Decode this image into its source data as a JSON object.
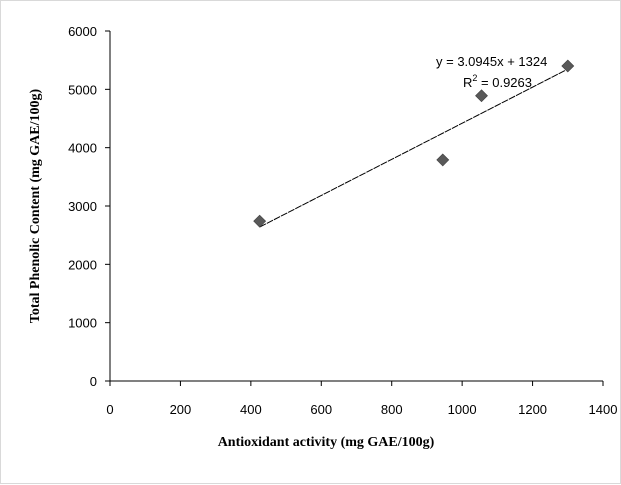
{
  "chart_data": {
    "type": "scatter",
    "title": "",
    "xlabel": "Antioxidant activity (mg GAE/100g)",
    "ylabel": "Total Phenolic Content (mg  GAE/100g)",
    "xlim": [
      0,
      1400
    ],
    "ylim": [
      0,
      6000
    ],
    "x_ticks": [
      "0",
      "200",
      "400",
      "600",
      "800",
      "1000",
      "1200",
      "1400"
    ],
    "y_ticks": [
      "0",
      "1000",
      "2000",
      "3000",
      "4000",
      "5000",
      "6000"
    ],
    "points": [
      {
        "x": 425,
        "y": 2740
      },
      {
        "x": 945,
        "y": 3790
      },
      {
        "x": 1055,
        "y": 4890
      },
      {
        "x": 1300,
        "y": 5400
      }
    ],
    "trendline": {
      "type": "linear",
      "slope": 3.0945,
      "intercept": 1324,
      "x_range": [
        425,
        1300
      ],
      "equation": "y = 3.0945x + 1324",
      "r2_prefix": "R",
      "r2_sup": "2",
      "r2_value": " = 0.9263"
    },
    "grid": false,
    "legend": "none",
    "marker": "diamond",
    "colors": {
      "marker": "#595959",
      "trendline": "#000000",
      "axis": "#000000"
    }
  }
}
